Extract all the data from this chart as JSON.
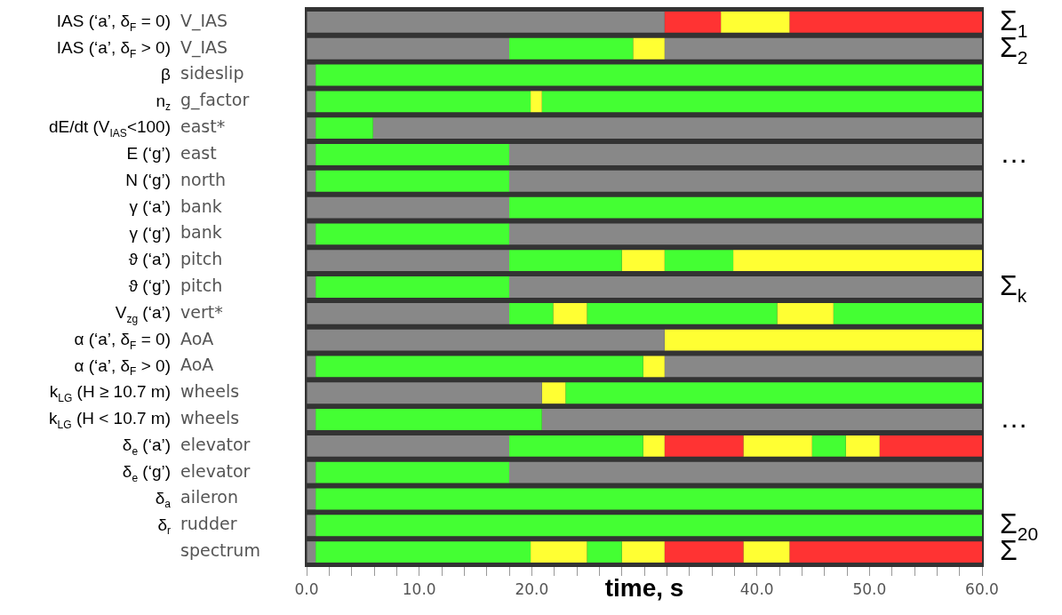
{
  "chart_data": {
    "type": "bar",
    "stacked": true,
    "orientation": "horizontal",
    "xlabel": "time, s",
    "xlim": [
      0,
      60
    ],
    "xticks": [
      {
        "value": 0,
        "label": "0.0"
      },
      {
        "value": 2,
        "label": null
      },
      {
        "value": 4,
        "label": null
      },
      {
        "value": 6,
        "label": null
      },
      {
        "value": 8,
        "label": null
      },
      {
        "value": 10,
        "label": "10.0"
      },
      {
        "value": 12,
        "label": null
      },
      {
        "value": 14,
        "label": null
      },
      {
        "value": 16,
        "label": null
      },
      {
        "value": 18,
        "label": null
      },
      {
        "value": 20,
        "label": "20.0"
      },
      {
        "value": 22,
        "label": null
      },
      {
        "value": 24,
        "label": null
      },
      {
        "value": 26,
        "label": null
      },
      {
        "value": 28,
        "label": null
      },
      {
        "value": 30,
        "label": null
      },
      {
        "value": 32,
        "label": null
      },
      {
        "value": 34,
        "label": null
      },
      {
        "value": 36,
        "label": null
      },
      {
        "value": 38,
        "label": null
      },
      {
        "value": 40,
        "label": "40.0"
      },
      {
        "value": 42,
        "label": null
      },
      {
        "value": 44,
        "label": null
      },
      {
        "value": 46,
        "label": null
      },
      {
        "value": 48,
        "label": null
      },
      {
        "value": 50,
        "label": "50.0"
      },
      {
        "value": 52,
        "label": null
      },
      {
        "value": 54,
        "label": null
      },
      {
        "value": 56,
        "label": null
      },
      {
        "value": 58,
        "label": null
      },
      {
        "value": 60,
        "label": "60.0"
      }
    ],
    "categories": [
      "V_IAS",
      "V_IAS",
      "sideslip",
      "g_factor",
      "east*",
      "east",
      "north",
      "bank",
      "bank",
      "pitch",
      "pitch",
      "vert*",
      "AoA",
      "AoA",
      "wheels",
      "wheels",
      "elevator",
      "elevator",
      "aileron",
      "rudder",
      "spectrum"
    ],
    "y_categories": [
      "IAS (‘a’, δ$_{F}$ = 0)",
      "IAS (‘a’, δ$_{F}$ > 0)",
      "β",
      "n$_{z}$",
      "dE/dt (V$_{IAS}$<100)",
      "E (‘g’)",
      "N (‘g’)",
      "γ (‘a’)",
      "γ (‘g’)",
      "ϑ (‘a’)",
      "ϑ (‘g’)",
      "V$_{zg}$ (‘a’)",
      "α (‘a’, δ$_{F}$ = 0)",
      "α (‘a’, δ$_{F}$ > 0)",
      "k$_{LG}$ (H ≥ 10.7 m)",
      "k$_{LG}$ (H < 10.7 m)",
      "δ$_{e}$ (‘a’)",
      "δ$_{e}$ (‘g’)",
      "δ$_{a}$",
      "δ$_{r}$",
      null
    ],
    "y2_categories": [
      "Σ$_{1}$",
      "Σ$_{2}$",
      null,
      null,
      null,
      "…",
      null,
      null,
      null,
      null,
      "Σ$_{k}$",
      null,
      null,
      null,
      null,
      "…",
      null,
      null,
      null,
      "Σ$_{20}$",
      "Σ"
    ],
    "series": [
      {
        "values": [
          31.8,
          18,
          0.8,
          0.8,
          0.8,
          0.8,
          0.8,
          18,
          0.8,
          18,
          0.8,
          18,
          31.8,
          0.8,
          20.9,
          0.8,
          18,
          0.8,
          0.8,
          0.8,
          0.8
        ],
        "colors": [
          "#888888",
          "#888888",
          "#888888",
          "#888888",
          "#888888",
          "#888888",
          "#888888",
          "#888888",
          "#888888",
          "#888888",
          "#888888",
          "#888888",
          "#888888",
          "#888888",
          "#888888",
          "#888888",
          "#888888",
          "#888888",
          "#888888",
          "#888888",
          "#888888"
        ]
      },
      {
        "values": [
          5,
          11,
          59.2,
          19.1,
          5.1,
          17.2,
          17.2,
          42,
          17.2,
          10,
          17.2,
          3.9,
          28.2,
          29.1,
          2.1,
          20.1,
          11.9,
          17.2,
          59.2,
          59.2,
          19.1
        ],
        "colors": [
          "#ff3333",
          "#44ff33",
          "#44ff33",
          "#44ff33",
          "#44ff33",
          "#44ff33",
          "#44ff33",
          "#44ff33",
          "#44ff33",
          "#44ff33",
          "#44ff33",
          "#44ff33",
          "#ffff33",
          "#44ff33",
          "#ffff33",
          "#44ff33",
          "#44ff33",
          "#44ff33",
          "#44ff33",
          "#44ff33",
          "#44ff33"
        ]
      },
      {
        "values": [
          6.1,
          2.8,
          null,
          1,
          54.1,
          42,
          42,
          null,
          42,
          3.8,
          42,
          3,
          null,
          1.9,
          37,
          39.1,
          1.9,
          42,
          null,
          null,
          5
        ],
        "colors": [
          "#ffff33",
          "#ffff33",
          null,
          "#ffff33",
          "#888888",
          "#888888",
          "#888888",
          null,
          "#888888",
          "#ffff33",
          "#888888",
          "#ffff33",
          null,
          "#ffff33",
          "#44ff33",
          "#888888",
          "#ffff33",
          "#888888",
          null,
          null,
          "#ffff33"
        ]
      },
      {
        "values": [
          17.1,
          28.2,
          null,
          39.1,
          null,
          null,
          null,
          null,
          null,
          6.1,
          null,
          16.9,
          null,
          28.2,
          null,
          null,
          7,
          null,
          null,
          null,
          3.1
        ],
        "colors": [
          "#ff3333",
          "#888888",
          null,
          "#44ff33",
          null,
          null,
          null,
          null,
          null,
          "#44ff33",
          null,
          "#44ff33",
          null,
          "#888888",
          null,
          null,
          "#ff3333",
          null,
          null,
          null,
          "#44ff33"
        ]
      },
      {
        "values": [
          null,
          null,
          null,
          null,
          null,
          null,
          null,
          null,
          null,
          22.1,
          null,
          5,
          null,
          null,
          null,
          null,
          6.1,
          null,
          null,
          null,
          3.8
        ],
        "colors": [
          null,
          null,
          null,
          null,
          null,
          null,
          null,
          null,
          null,
          "#ffff33",
          null,
          "#ffff33",
          null,
          null,
          null,
          null,
          "#ffff33",
          null,
          null,
          null,
          "#ffff33"
        ]
      },
      {
        "values": [
          null,
          null,
          null,
          null,
          null,
          null,
          null,
          null,
          null,
          null,
          null,
          13.2,
          null,
          null,
          null,
          null,
          3,
          null,
          null,
          null,
          7
        ],
        "colors": [
          null,
          null,
          null,
          null,
          null,
          null,
          null,
          null,
          null,
          null,
          null,
          "#44ff33",
          null,
          null,
          null,
          null,
          "#44ff33",
          null,
          null,
          null,
          "#ff3333"
        ]
      },
      {
        "values": [
          null,
          null,
          null,
          null,
          null,
          null,
          null,
          null,
          null,
          null,
          null,
          null,
          null,
          null,
          null,
          null,
          3,
          null,
          null,
          null,
          4.1
        ],
        "colors": [
          null,
          null,
          null,
          null,
          null,
          null,
          null,
          null,
          null,
          null,
          null,
          null,
          null,
          null,
          null,
          null,
          "#ffff33",
          null,
          null,
          null,
          "#ffff33"
        ]
      },
      {
        "values": [
          null,
          null,
          null,
          null,
          null,
          null,
          null,
          null,
          null,
          null,
          null,
          null,
          null,
          null,
          null,
          null,
          9.1,
          null,
          null,
          null,
          17.1
        ],
        "colors": [
          null,
          null,
          null,
          null,
          null,
          null,
          null,
          null,
          null,
          null,
          null,
          null,
          null,
          null,
          null,
          null,
          "#ff3333",
          null,
          null,
          null,
          "#ff3333"
        ]
      }
    ]
  }
}
